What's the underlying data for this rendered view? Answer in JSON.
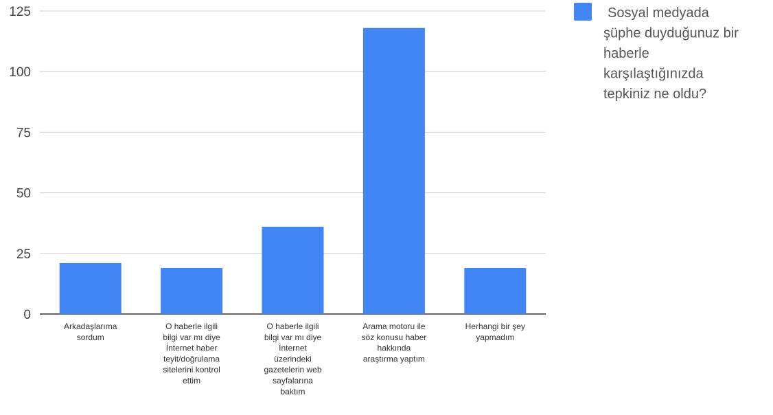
{
  "chart_data": {
    "type": "bar",
    "categories": [
      [
        "Arkadaşlarıma",
        "sordum"
      ],
      [
        "O haberle ilgili",
        "bilgi var mı diye",
        "İnternet haber",
        "teyit/doğrulama",
        "sitelerini kontrol",
        "ettim"
      ],
      [
        "O haberle ilgili",
        "bilgi var mı diye",
        "İnternet",
        "üzerindeki",
        "gazetelerin web",
        "sayfalarına",
        "baktım"
      ],
      [
        "Arama motoru ile",
        "söz konusu haber",
        "hakkında",
        "araştırma yaptım"
      ],
      [
        "Herhangi bir şey",
        "yapmadım"
      ]
    ],
    "series": [
      {
        "name": "Sosyal medyada şüphe duyduğunuz bir haberle karşılaştığınızda tepkiniz ne oldu?",
        "values": [
          21,
          19,
          36,
          118,
          19
        ]
      }
    ],
    "legend": {
      "lines": [
        "Sosyal medyada",
        "şüphe duyduğunuz bir",
        "haberle",
        "karşılaştığınızda",
        "tepkiniz ne oldu?"
      ],
      "position": "right"
    },
    "yticks": [
      0,
      25,
      50,
      75,
      100,
      125
    ],
    "ylim": [
      0,
      125
    ],
    "grid": true,
    "colors": {
      "bar": "#4285f4",
      "grid": "#cccccc",
      "axis": "#333333"
    }
  }
}
